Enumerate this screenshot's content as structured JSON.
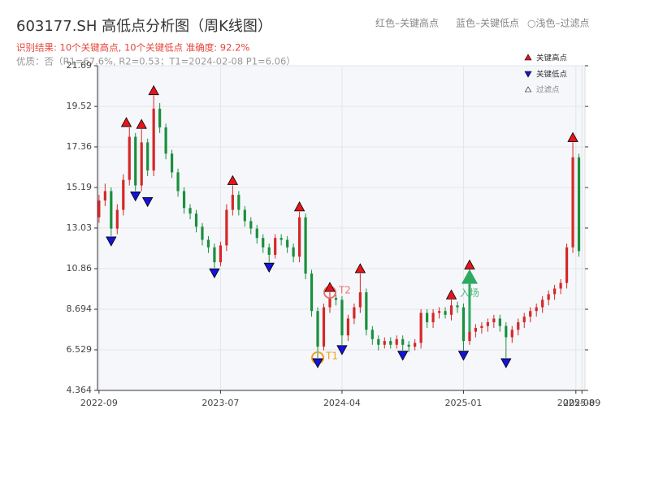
{
  "chart_data": {
    "type": "candlestick",
    "title": "603177.SH 高低点分析图（周K线图）",
    "header_notes": [
      "红色–关键高点",
      "蓝色–关键低点",
      "○浅色–过滤点"
    ],
    "subtitle": "识别结果: 10个关键高点, 10个关键低点  准确度: 92.2%",
    "quality_note": "优质：否（R1=67.6%, R2=0.53；T1=2024-02-08 P1=6.06）",
    "up_color": "#d62728",
    "down_color": "#1a8f3c",
    "x": [
      0,
      2,
      4,
      6,
      8,
      10,
      12,
      14,
      16,
      18,
      20,
      22,
      24,
      26,
      28,
      30,
      32,
      34,
      36,
      38,
      40,
      42,
      44,
      46,
      48,
      50,
      52,
      54,
      56,
      58,
      60,
      62,
      64,
      66,
      68,
      70,
      72,
      74,
      76,
      78,
      80,
      82,
      84,
      86,
      88,
      90,
      92,
      94,
      96,
      98,
      100,
      102,
      104,
      106,
      108,
      110,
      112,
      114,
      116,
      118,
      120,
      122,
      124,
      126,
      128,
      130,
      132,
      134,
      136,
      138,
      140,
      142,
      144,
      146,
      148,
      150,
      152,
      154,
      156,
      158
    ],
    "open": [
      13.6,
      14.5,
      15.0,
      13.0,
      14.0,
      15.6,
      17.9,
      15.3,
      17.6,
      16.1,
      19.4,
      18.4,
      17.0,
      16.0,
      15.0,
      14.1,
      13.8,
      13.1,
      12.4,
      12.0,
      11.2,
      12.1,
      14.0,
      14.8,
      14.0,
      13.4,
      13.0,
      12.5,
      12.0,
      11.6,
      12.5,
      12.4,
      12.0,
      11.5,
      13.6,
      10.6,
      8.6,
      6.7,
      8.8,
      9.3,
      9.2,
      7.3,
      8.2,
      8.8,
      9.6,
      7.6,
      7.1,
      6.8,
      7.0,
      6.8,
      7.1,
      6.8,
      6.7,
      6.9,
      8.5,
      8.0,
      8.5,
      8.6,
      8.4,
      8.9,
      8.8,
      7.0,
      7.5,
      7.7,
      7.8,
      8.0,
      8.2,
      7.8,
      7.2,
      7.6,
      8.0,
      8.3,
      8.6,
      8.8,
      9.2,
      9.5,
      9.8,
      10.1,
      12.0,
      16.8
    ],
    "high": [
      14.8,
      15.4,
      15.2,
      14.3,
      15.9,
      18.4,
      18.1,
      18.3,
      17.8,
      20.1,
      19.7,
      18.6,
      17.2,
      16.2,
      15.2,
      14.3,
      14.0,
      13.3,
      12.6,
      12.2,
      12.3,
      14.3,
      15.3,
      15.0,
      14.2,
      13.6,
      13.2,
      12.7,
      12.2,
      12.7,
      12.7,
      12.6,
      12.2,
      13.9,
      13.8,
      10.8,
      8.8,
      9.0,
      9.6,
      9.5,
      9.4,
      8.4,
      9.0,
      10.6,
      9.8,
      7.8,
      7.3,
      7.2,
      7.2,
      7.3,
      7.3,
      7.0,
      7.1,
      8.7,
      8.7,
      8.7,
      8.8,
      8.8,
      9.2,
      9.1,
      9.0,
      10.8,
      7.9,
      8.0,
      8.2,
      8.4,
      8.4,
      8.0,
      7.8,
      8.2,
      8.5,
      8.8,
      9.0,
      9.4,
      9.7,
      10.0,
      10.3,
      12.2,
      17.6,
      17.0
    ],
    "low": [
      13.3,
      14.2,
      12.6,
      12.7,
      13.7,
      15.3,
      15.0,
      15.0,
      15.8,
      15.8,
      18.1,
      16.7,
      15.7,
      14.7,
      13.8,
      13.5,
      12.8,
      12.1,
      11.7,
      10.9,
      11.0,
      11.8,
      13.7,
      13.7,
      13.1,
      12.7,
      12.2,
      11.7,
      11.2,
      11.4,
      12.1,
      11.7,
      11.2,
      11.2,
      10.3,
      8.3,
      6.1,
      6.5,
      8.5,
      8.9,
      6.8,
      7.0,
      7.9,
      8.5,
      7.3,
      6.8,
      6.5,
      6.6,
      6.6,
      6.6,
      6.5,
      6.4,
      6.5,
      6.6,
      7.7,
      7.7,
      8.2,
      8.2,
      8.1,
      8.5,
      6.5,
      6.8,
      7.2,
      7.4,
      7.5,
      7.7,
      7.5,
      6.1,
      6.9,
      7.3,
      7.7,
      8.0,
      8.3,
      8.5,
      8.9,
      9.2,
      9.5,
      9.8,
      11.7,
      11.5
    ],
    "close": [
      14.5,
      15.0,
      13.0,
      14.0,
      15.6,
      17.9,
      15.3,
      17.6,
      16.1,
      19.4,
      18.4,
      17.0,
      16.0,
      15.0,
      14.1,
      13.8,
      13.1,
      12.4,
      12.0,
      11.2,
      12.1,
      14.0,
      14.8,
      14.0,
      13.4,
      13.0,
      12.5,
      12.0,
      11.6,
      12.5,
      12.4,
      12.0,
      11.5,
      13.6,
      10.6,
      8.6,
      6.7,
      8.8,
      9.3,
      9.2,
      7.3,
      8.2,
      8.8,
      9.6,
      7.6,
      7.1,
      6.8,
      7.0,
      6.8,
      7.1,
      6.8,
      6.7,
      6.9,
      8.5,
      8.0,
      8.5,
      8.6,
      8.4,
      8.9,
      8.8,
      7.0,
      7.5,
      7.7,
      7.8,
      8.0,
      8.2,
      7.8,
      7.2,
      7.6,
      8.0,
      8.3,
      8.6,
      8.8,
      9.2,
      9.5,
      9.8,
      10.1,
      12.0,
      16.8,
      11.8
    ],
    "key_highs": {
      "name": "关键高点",
      "color": "#e8141b",
      "x": [
        9,
        14,
        18,
        44,
        66,
        76,
        86,
        116,
        122,
        156
      ],
      "y": [
        18.4,
        18.3,
        20.1,
        15.3,
        13.9,
        9.6,
        10.6,
        9.2,
        10.8,
        17.6
      ]
    },
    "key_lows": {
      "name": "关键低点",
      "color": "#1414d8",
      "x": [
        4,
        12,
        16,
        38,
        56,
        72,
        80,
        100,
        120,
        134
      ],
      "y": [
        12.6,
        15.0,
        14.7,
        10.9,
        11.2,
        6.1,
        6.8,
        6.5,
        6.5,
        6.1
      ]
    },
    "filtered": {
      "name": "过滤点",
      "color": "#ffffff"
    },
    "annotations": [
      {
        "text": "T1",
        "x": 72,
        "y": 6.1,
        "color": "#f0a020"
      },
      {
        "text": "T2",
        "x": 76,
        "y": 9.6,
        "color": "#f07070"
      },
      {
        "text": "入场",
        "x": 122,
        "y": 10.4,
        "color": "#2eaa60"
      }
    ],
    "xlim": [
      -0.5,
      160
    ],
    "xticks": [
      {
        "value": 0,
        "label": "2022-09"
      },
      {
        "value": 40,
        "label": "2023-07"
      },
      {
        "value": 80,
        "label": "2024-04"
      },
      {
        "value": 120,
        "label": "2025-01"
      },
      {
        "value": 157,
        "label": "2025-08"
      },
      {
        "value": 159,
        "label": "2025-09"
      }
    ],
    "ylim": [
      4.364,
      21.69
    ],
    "yticks": [
      4.364,
      6.529,
      8.694,
      10.86,
      13.03,
      15.19,
      17.36,
      19.52,
      21.69
    ],
    "grid": true
  }
}
